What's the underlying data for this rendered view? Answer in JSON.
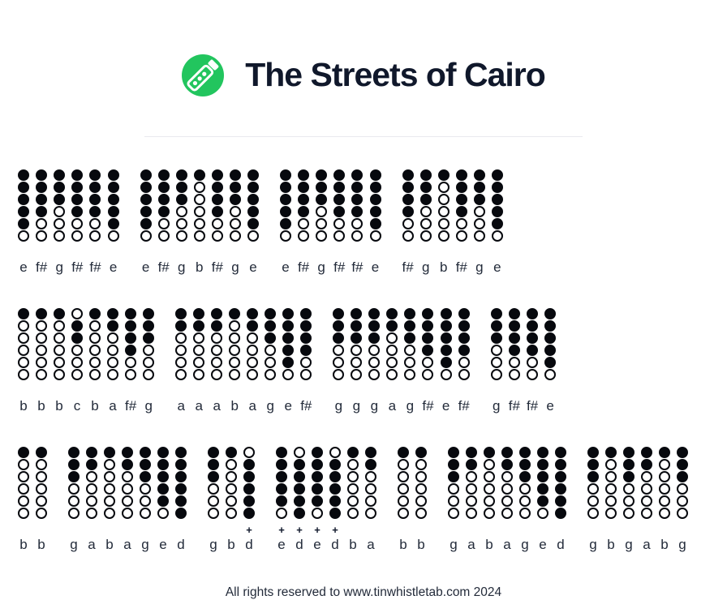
{
  "header": {
    "title": "The Streets of Cairo"
  },
  "logo": {
    "icon": "tin-whistle-icon"
  },
  "colors": {
    "logo_green": "#22c55e",
    "title_dark": "#10182b",
    "hole_black": "#07090e",
    "divider_gray": "#e9eaee"
  },
  "symbols": {
    "octave_plus": "+"
  },
  "footer": {
    "text": "All rights reserved to www.tinwhistletab.com 2024"
  },
  "lines": [
    {
      "groups": [
        {
          "notes": [
            {
              "label": "e",
              "holes": "111110"
            },
            {
              "label": "f#",
              "holes": "111100"
            },
            {
              "label": "g",
              "holes": "111000"
            },
            {
              "label": "f#",
              "holes": "111100"
            },
            {
              "label": "f#",
              "holes": "111100"
            },
            {
              "label": "e",
              "holes": "111110"
            }
          ]
        },
        {
          "notes": [
            {
              "label": "e",
              "holes": "111110"
            },
            {
              "label": "f#",
              "holes": "111100"
            },
            {
              "label": "g",
              "holes": "111000"
            },
            {
              "label": "b",
              "holes": "100000"
            },
            {
              "label": "f#",
              "holes": "111100"
            },
            {
              "label": "g",
              "holes": "111000"
            },
            {
              "label": "e",
              "holes": "111110"
            }
          ]
        },
        {
          "notes": [
            {
              "label": "e",
              "holes": "111110"
            },
            {
              "label": "f#",
              "holes": "111100"
            },
            {
              "label": "g",
              "holes": "111000"
            },
            {
              "label": "f#",
              "holes": "111100"
            },
            {
              "label": "f#",
              "holes": "111100"
            },
            {
              "label": "e",
              "holes": "111110"
            }
          ]
        },
        {
          "notes": [
            {
              "label": "f#",
              "holes": "111100"
            },
            {
              "label": "g",
              "holes": "111000"
            },
            {
              "label": "b",
              "holes": "100000"
            },
            {
              "label": "f#",
              "holes": "111100"
            },
            {
              "label": "g",
              "holes": "111000"
            },
            {
              "label": "e",
              "holes": "111110"
            }
          ]
        }
      ]
    },
    {
      "groups": [
        {
          "notes": [
            {
              "label": "b",
              "holes": "100000"
            },
            {
              "label": "b",
              "holes": "100000"
            },
            {
              "label": "b",
              "holes": "100000"
            },
            {
              "label": "c",
              "holes": "011000"
            },
            {
              "label": "b",
              "holes": "100000"
            },
            {
              "label": "a",
              "holes": "110000"
            },
            {
              "label": "f#",
              "holes": "111100"
            },
            {
              "label": "g",
              "holes": "111000"
            }
          ]
        },
        {
          "notes": [
            {
              "label": "a",
              "holes": "110000"
            },
            {
              "label": "a",
              "holes": "110000"
            },
            {
              "label": "a",
              "holes": "110000"
            },
            {
              "label": "b",
              "holes": "100000"
            },
            {
              "label": "a",
              "holes": "110000"
            },
            {
              "label": "g",
              "holes": "111000"
            },
            {
              "label": "e",
              "holes": "111110"
            },
            {
              "label": "f#",
              "holes": "111100"
            }
          ]
        },
        {
          "notes": [
            {
              "label": "g",
              "holes": "111000"
            },
            {
              "label": "g",
              "holes": "111000"
            },
            {
              "label": "g",
              "holes": "111000"
            },
            {
              "label": "a",
              "holes": "110000"
            },
            {
              "label": "g",
              "holes": "111000"
            },
            {
              "label": "f#",
              "holes": "111100"
            },
            {
              "label": "e",
              "holes": "111110"
            },
            {
              "label": "f#",
              "holes": "111100"
            }
          ]
        },
        {
          "notes": [
            {
              "label": "g",
              "holes": "111000"
            },
            {
              "label": "f#",
              "holes": "111100"
            },
            {
              "label": "f#",
              "holes": "111100"
            },
            {
              "label": "e",
              "holes": "111110"
            }
          ]
        }
      ]
    },
    {
      "groups": [
        {
          "notes": [
            {
              "label": "b",
              "holes": "100000"
            },
            {
              "label": "b",
              "holes": "100000"
            }
          ]
        },
        {
          "notes": [
            {
              "label": "g",
              "holes": "111000"
            },
            {
              "label": "a",
              "holes": "110000"
            },
            {
              "label": "b",
              "holes": "100000"
            },
            {
              "label": "a",
              "holes": "110000"
            },
            {
              "label": "g",
              "holes": "111000"
            },
            {
              "label": "e",
              "holes": "111110"
            },
            {
              "label": "d",
              "holes": "111111"
            }
          ]
        },
        {
          "notes": [
            {
              "label": "g",
              "holes": "111000"
            },
            {
              "label": "b",
              "holes": "100000"
            },
            {
              "label": "d",
              "holes": "011111",
              "plus": true
            }
          ]
        },
        {
          "notes": [
            {
              "label": "e",
              "holes": "111110",
              "plus": true
            },
            {
              "label": "d",
              "holes": "011111",
              "plus": true
            },
            {
              "label": "e",
              "holes": "111110",
              "plus": true
            },
            {
              "label": "d",
              "holes": "011111",
              "plus": true
            },
            {
              "label": "b",
              "holes": "100000"
            },
            {
              "label": "a",
              "holes": "110000"
            }
          ]
        },
        {
          "notes": [
            {
              "label": "b",
              "holes": "100000"
            },
            {
              "label": "b",
              "holes": "100000"
            }
          ]
        },
        {
          "notes": [
            {
              "label": "g",
              "holes": "111000"
            },
            {
              "label": "a",
              "holes": "110000"
            },
            {
              "label": "b",
              "holes": "100000"
            },
            {
              "label": "a",
              "holes": "110000"
            },
            {
              "label": "g",
              "holes": "111000"
            },
            {
              "label": "e",
              "holes": "111110"
            },
            {
              "label": "d",
              "holes": "111111"
            }
          ]
        },
        {
          "notes": [
            {
              "label": "g",
              "holes": "111000"
            },
            {
              "label": "b",
              "holes": "100000"
            },
            {
              "label": "g",
              "holes": "111000"
            },
            {
              "label": "a",
              "holes": "110000"
            },
            {
              "label": "b",
              "holes": "100000"
            },
            {
              "label": "g",
              "holes": "111000"
            }
          ]
        }
      ]
    }
  ]
}
